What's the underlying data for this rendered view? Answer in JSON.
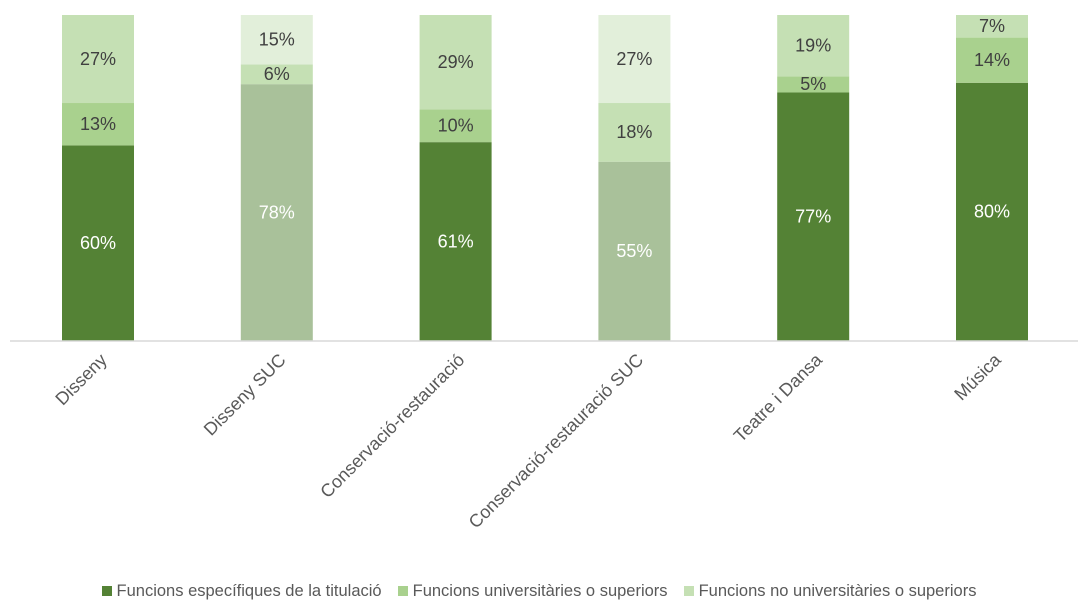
{
  "chart_data": {
    "type": "bar",
    "stacked": true,
    "categories": [
      "Disseny",
      "Disseny SUC",
      "Conservació-restauració",
      "Conservació-restauració SUC",
      "Teatre i Dansa",
      "Música"
    ],
    "series": [
      {
        "name": "Funcions específiques de la titulació",
        "values": [
          60,
          78,
          61,
          55,
          77,
          80
        ],
        "labels": [
          "60%",
          "78%",
          "61%",
          "55%",
          "77%",
          "80%"
        ]
      },
      {
        "name": "Funcions universitàries o superiors",
        "values": [
          13,
          6,
          10,
          18,
          5,
          14
        ],
        "labels": [
          "13%",
          "6%",
          "10%",
          "18%",
          "5%",
          "14%"
        ]
      },
      {
        "name": "Funcions no universitàries o superiors",
        "values": [
          27,
          15,
          29,
          27,
          19,
          7
        ],
        "labels": [
          "27%",
          "15%",
          "29%",
          "27%",
          "19%",
          "7%"
        ]
      }
    ],
    "bar_colors": [
      [
        "#548235",
        "#a9d18e",
        "#c5e0b4"
      ],
      [
        "#a9c19a",
        "#c5e0b4",
        "#e2efda"
      ],
      [
        "#548235",
        "#a9d18e",
        "#c5e0b4"
      ],
      [
        "#a9c19a",
        "#c5e0b4",
        "#e2efda"
      ],
      [
        "#548235",
        "#a9d18e",
        "#c5e0b4"
      ],
      [
        "#548235",
        "#a9d18e",
        "#c5e0b4"
      ]
    ],
    "legend_colors": [
      "#548235",
      "#a9d18e",
      "#c5e0b4"
    ],
    "ylim": [
      0,
      100
    ],
    "grid": false,
    "legend_position": "bottom",
    "xlabel": "",
    "ylabel": ""
  }
}
